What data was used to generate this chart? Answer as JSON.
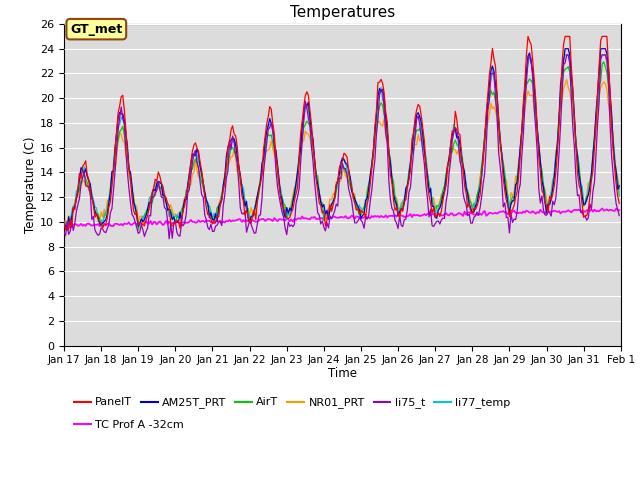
{
  "title": "Temperatures",
  "xlabel": "Time",
  "ylabel": "Temperature (C)",
  "ylim": [
    0,
    26
  ],
  "xlim": [
    0,
    360
  ],
  "background_color": "#dcdcdc",
  "annotation_text": "GT_met",
  "annotation_box_color": "#ffff99",
  "annotation_border_color": "#8B4513",
  "series_colors": {
    "PanelT": "#ff0000",
    "AM25T_PRT": "#0000cc",
    "AirT": "#00cc00",
    "NR01_PRT": "#ff9900",
    "li75_t": "#9900bb",
    "li77_temp": "#00cccc",
    "TC Prof A -32cm": "#ff00ff"
  },
  "n_points": 360,
  "xtick_labels": [
    "Jan 17",
    "Jan 18",
    "Jan 19",
    "Jan 20",
    "Jan 21",
    "Jan 22",
    "Jan 23",
    "Jan 24",
    "Jan 25",
    "Jan 26",
    "Jan 27",
    "Jan 28",
    "Jan 29",
    "Jan 30",
    "Jan 31",
    "Feb 1"
  ],
  "xtick_positions": [
    0,
    24,
    48,
    72,
    96,
    120,
    144,
    168,
    192,
    216,
    240,
    264,
    288,
    312,
    336,
    360
  ],
  "ytick_labels": [
    "0",
    "2",
    "4",
    "6",
    "8",
    "10",
    "12",
    "14",
    "16",
    "18",
    "20",
    "22",
    "24",
    "26"
  ],
  "ytick_positions": [
    0,
    2,
    4,
    6,
    8,
    10,
    12,
    14,
    16,
    18,
    20,
    22,
    24,
    26
  ]
}
